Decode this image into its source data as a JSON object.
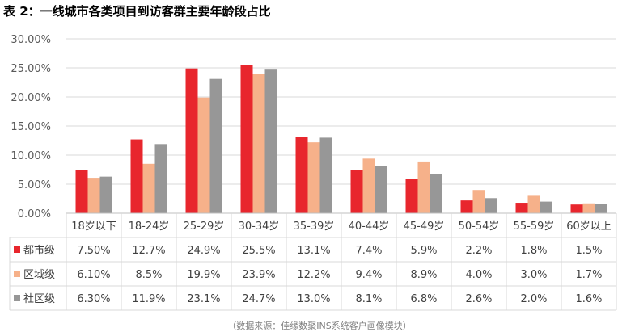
{
  "title": "表 2：一线城市各类项目到访客群主要年龄段占比",
  "source": "（数据来源：佳缘数聚INS系统客户画像模块）",
  "chart_data": {
    "type": "bar",
    "categories": [
      "18岁以下",
      "18-24岁",
      "25-29岁",
      "30-34岁",
      "35-39岁",
      "40-44岁",
      "45-49岁",
      "50-54岁",
      "55-59岁",
      "60岁以上"
    ],
    "ylim": [
      0,
      30
    ],
    "yticks": [
      "0.00%",
      "5.00%",
      "10.00%",
      "15.00%",
      "20.00%",
      "25.00%",
      "30.00%"
    ],
    "grid": true,
    "legend": "data-table",
    "series": [
      {
        "name": "都市级",
        "color": "#e8262d",
        "values": [
          7.5,
          12.7,
          24.9,
          25.5,
          13.1,
          7.4,
          5.9,
          2.2,
          1.8,
          1.5
        ],
        "labels": [
          "7.50%",
          "12.7%",
          "24.9%",
          "25.5%",
          "13.1%",
          "7.4%",
          "5.9%",
          "2.2%",
          "1.8%",
          "1.5%"
        ]
      },
      {
        "name": "区域级",
        "color": "#f6b18a",
        "values": [
          6.1,
          8.5,
          19.9,
          23.9,
          12.2,
          9.4,
          8.9,
          4.0,
          3.0,
          1.7
        ],
        "labels": [
          "6.10%",
          "8.5%",
          "19.9%",
          "23.9%",
          "12.2%",
          "9.4%",
          "8.9%",
          "4.0%",
          "3.0%",
          "1.7%"
        ]
      },
      {
        "name": "社区级",
        "color": "#979797",
        "values": [
          6.3,
          11.9,
          23.1,
          24.7,
          13.0,
          8.1,
          6.8,
          2.6,
          2.0,
          1.6
        ],
        "labels": [
          "6.30%",
          "11.9%",
          "23.1%",
          "24.7%",
          "13.0%",
          "8.1%",
          "6.8%",
          "2.6%",
          "2.0%",
          "1.6%"
        ]
      }
    ]
  }
}
